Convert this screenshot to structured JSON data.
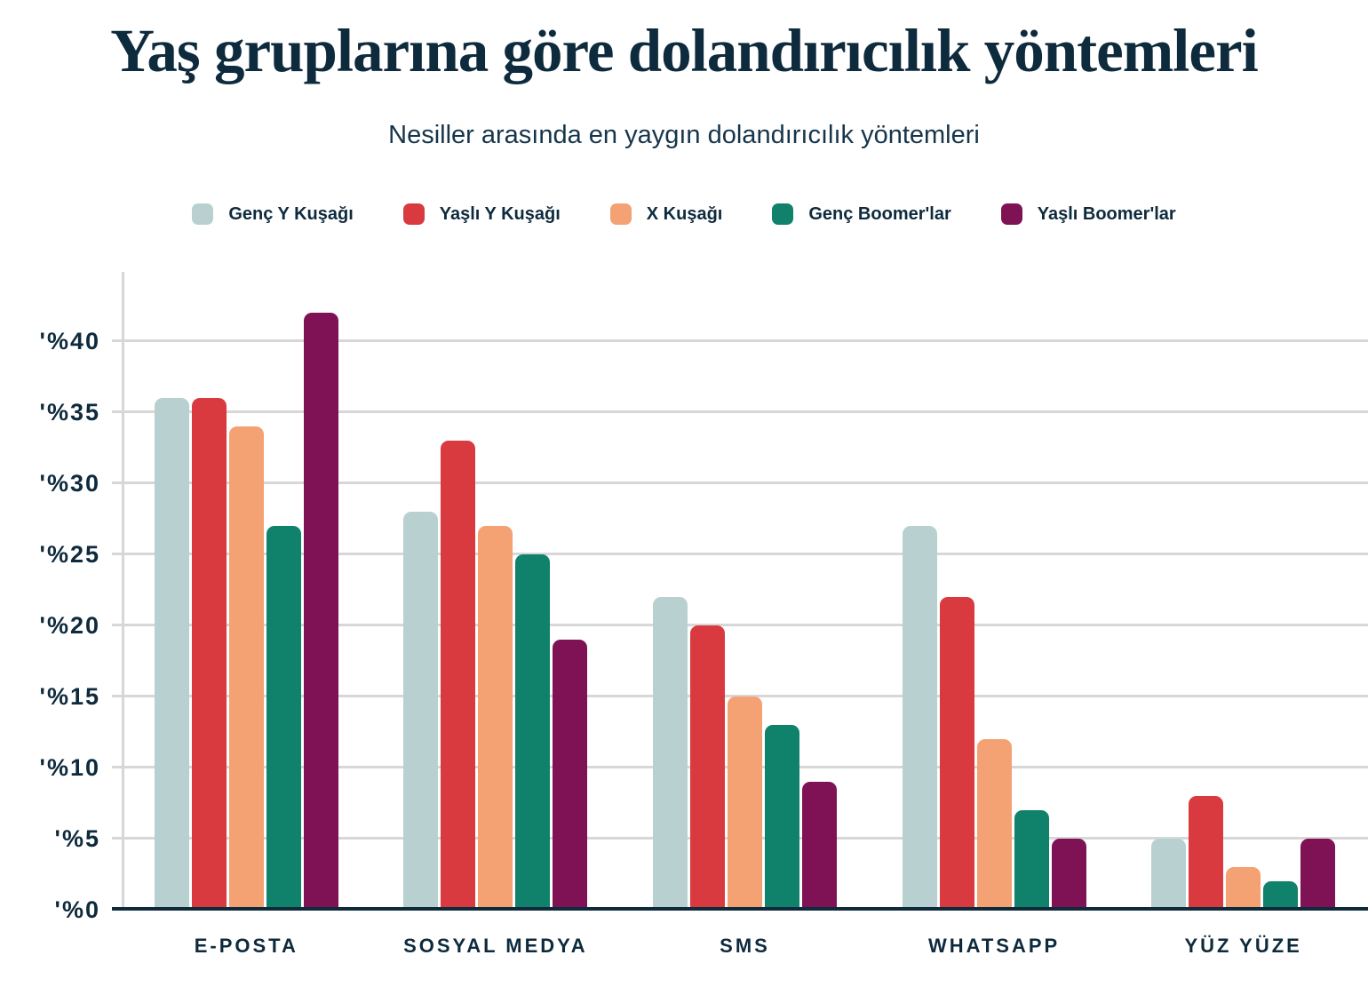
{
  "header": {
    "title": "Yaş gruplarına göre dolandırıcılık yöntemleri",
    "subtitle": "Nesiller arasında en yaygın dolandırıcılık yöntemleri"
  },
  "colors": {
    "background": "#ffffff",
    "text": "#0e2a3d",
    "gridline": "#d7d7d7",
    "axis": "#0e2a3d"
  },
  "chart_data": {
    "type": "bar",
    "title": "Yaş gruplarına göre dolandırıcılık yöntemleri",
    "subtitle": "Nesiller arasında en yaygın dolandırıcılık yöntemleri",
    "categories": [
      "E-POSTA",
      "SOSYAL MEDYA",
      "SMS",
      "WHATSAPP",
      "YÜZ YÜZE"
    ],
    "series": [
      {
        "name": "Genç Y Kuşağı",
        "color": "#b8d1d0",
        "values": [
          36,
          28,
          22,
          27,
          5
        ]
      },
      {
        "name": "Yaşlı Y Kuşağı",
        "color": "#d83a3f",
        "values": [
          36,
          33,
          20,
          22,
          8
        ]
      },
      {
        "name": "X Kuşağı",
        "color": "#f4a173",
        "values": [
          34,
          27,
          15,
          12,
          3
        ]
      },
      {
        "name": "Genç Boomer'lar",
        "color": "#10816a",
        "values": [
          27,
          25,
          13,
          7,
          2
        ]
      },
      {
        "name": "Yaşlı Boomer'lar",
        "color": "#7e1255",
        "values": [
          42,
          19,
          9,
          5,
          5
        ]
      }
    ],
    "xlabel": "",
    "ylabel": "",
    "y_ticks": [
      "'%0",
      "'%5",
      "'%10",
      "'%15",
      "'%20",
      "'%25",
      "'%30",
      "'%35",
      "'%40"
    ],
    "y_tick_values": [
      0,
      5,
      10,
      15,
      20,
      25,
      30,
      35,
      40
    ],
    "ylim": [
      0,
      44.9
    ],
    "grid": "horizontal",
    "legend_position": "top"
  }
}
